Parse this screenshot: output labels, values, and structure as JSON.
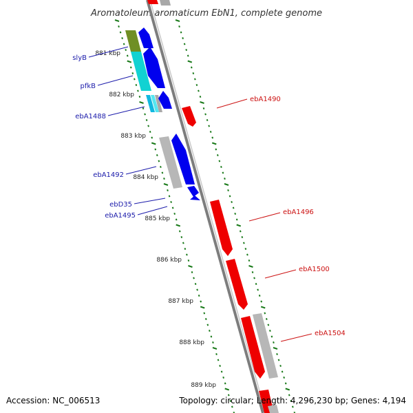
{
  "title": "Aromatoleum aromaticum EbN1, complete genome",
  "footer": {
    "accession": "Accession: NC_006513",
    "summary": "Topology: circular; Length: 4,296,230 bp; Genes: 4,194"
  },
  "colors": {
    "backbone": "#8a8a8a",
    "tick": "#1a7a1a",
    "forward_gene": "#0000ee",
    "reverse_gene": "#ee0000",
    "pseudo_gene": "#bbbbbb",
    "left_label": "#1a1aaa",
    "right_label": "#cc1111"
  },
  "kbp_labels": [
    "881 kbp",
    "882 kbp",
    "883 kbp",
    "884 kbp",
    "885 kbp",
    "886 kbp",
    "887 kbp",
    "888 kbp",
    "889 kbp"
  ],
  "left_genes": [
    "slyB",
    "pfkB",
    "ebA1488",
    "ebA1492",
    "ebD35",
    "ebA1495"
  ],
  "right_genes": [
    "ebA1490",
    "ebA1496",
    "ebA1500",
    "ebA1504"
  ]
}
